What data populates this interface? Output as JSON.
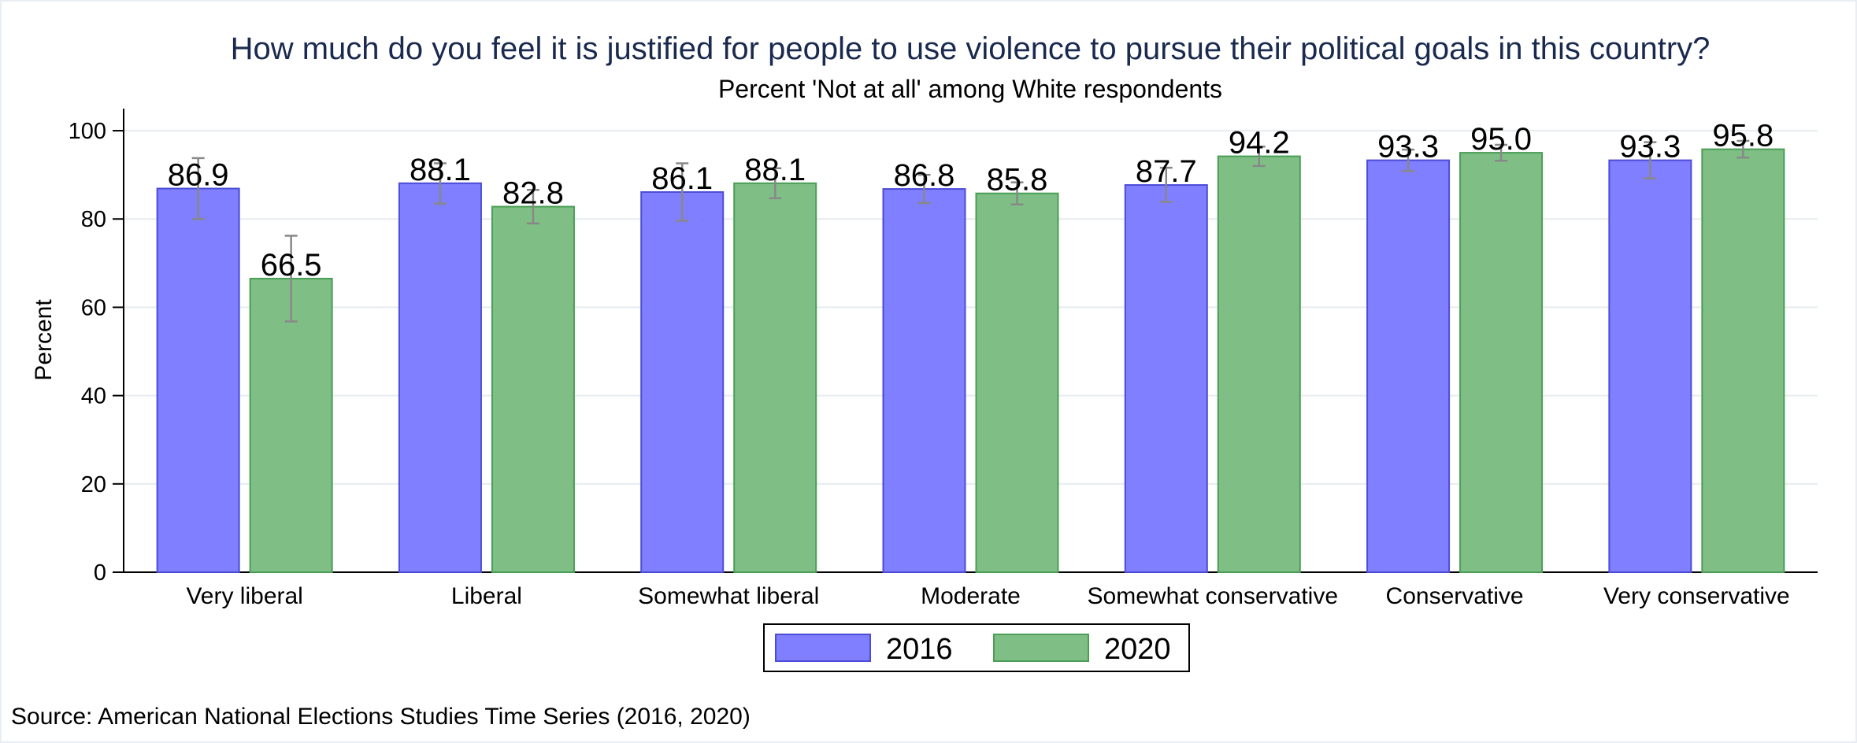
{
  "chart_data": {
    "type": "bar",
    "title": "How much do you feel it is justified for people to use violence to pursue their political goals in this country?",
    "subtitle": "Percent 'Not at all' among White respondents",
    "ylabel": "Percent",
    "xlabel": "",
    "ylim": [
      0,
      105
    ],
    "yticks": [
      0,
      20,
      40,
      60,
      80,
      100
    ],
    "grid": true,
    "legend_position": "bottom",
    "categories": [
      "Very liberal",
      "Liberal",
      "Somewhat liberal",
      "Moderate",
      "Somewhat conservative",
      "Conservative",
      "Very conservative"
    ],
    "series": [
      {
        "name": "2016",
        "color": "#7f7fff",
        "edge_color": "#4c4cd8",
        "values": [
          86.9,
          88.1,
          86.1,
          86.8,
          87.7,
          93.3,
          93.3
        ],
        "labels": [
          "86.9",
          "88.1",
          "86.1",
          "86.8",
          "87.7",
          "93.3",
          "93.3"
        ],
        "ci_low": [
          80.0,
          83.5,
          79.6,
          83.6,
          83.9,
          90.9,
          89.2
        ],
        "ci_high": [
          93.8,
          92.6,
          92.6,
          90.0,
          91.6,
          95.7,
          97.4
        ]
      },
      {
        "name": "2020",
        "color": "#7fbf86",
        "edge_color": "#4a9e55",
        "values": [
          66.5,
          82.8,
          88.1,
          85.8,
          94.2,
          95.0,
          95.8
        ],
        "labels": [
          "66.5",
          "82.8",
          "88.1",
          "85.8",
          "94.2",
          "95.0",
          "95.8"
        ],
        "ci_low": [
          56.8,
          79.0,
          84.7,
          83.3,
          92.0,
          93.2,
          93.9
        ],
        "ci_high": [
          76.2,
          86.6,
          91.5,
          88.3,
          96.4,
          96.8,
          97.7
        ]
      }
    ],
    "source": "Source: American National Elections Studies Time Series (2016, 2020)"
  }
}
